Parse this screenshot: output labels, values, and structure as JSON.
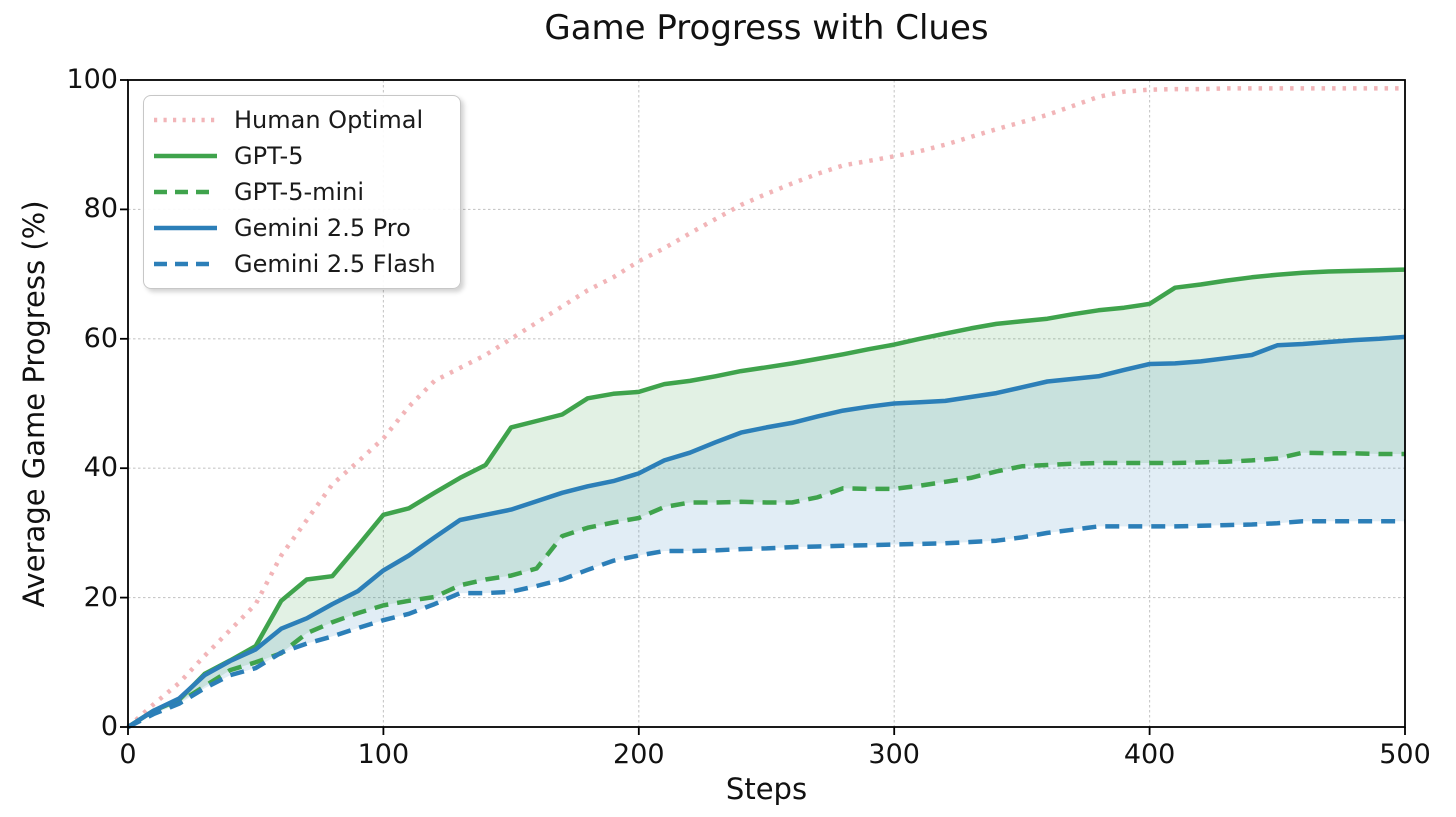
{
  "title": "Game Progress with Clues",
  "axes": {
    "x_label": "Steps",
    "y_label": "Average Game Progress (%)",
    "x_ticks": [
      0,
      100,
      200,
      300,
      400,
      500
    ],
    "y_ticks": [
      0,
      20,
      40,
      60,
      80,
      100
    ]
  },
  "colors": {
    "pink": "#f2b5b8",
    "green": "#3fa34c",
    "blue": "#2c7fb8",
    "grid": "#c8c8c8",
    "axis": "#000000",
    "green_fill": "rgba(63,163,76,0.15)",
    "blue_fill": "rgba(44,127,184,0.14)"
  },
  "chart_data": {
    "type": "line",
    "title": "Game Progress with Clues",
    "xlabel": "Steps",
    "ylabel": "Average Game Progress (%)",
    "xlim": [
      0,
      500
    ],
    "ylim": [
      0,
      100
    ],
    "grid": true,
    "legend_position": "upper left",
    "x": [
      0,
      10,
      20,
      30,
      40,
      50,
      60,
      70,
      80,
      90,
      100,
      110,
      120,
      130,
      140,
      150,
      160,
      170,
      180,
      190,
      200,
      210,
      220,
      230,
      240,
      250,
      260,
      270,
      280,
      290,
      300,
      310,
      320,
      330,
      340,
      350,
      360,
      370,
      380,
      390,
      400,
      410,
      420,
      430,
      440,
      450,
      460,
      470,
      480,
      490,
      500
    ],
    "series": [
      {
        "name": "Human Optimal",
        "style": "dotted",
        "color": "#f2b5b8",
        "values": [
          0,
          3.5,
          6.8,
          11,
          15,
          19,
          26.5,
          32,
          37.5,
          41,
          44.6,
          49.5,
          53.5,
          55.5,
          57.5,
          60,
          62.5,
          65,
          67.5,
          69.5,
          72,
          74,
          76.3,
          78.5,
          80.7,
          82.4,
          84,
          85.5,
          86.8,
          87.5,
          88.2,
          89,
          90,
          91.2,
          92.4,
          93.5,
          94.6,
          96,
          97.4,
          98.2,
          98.5,
          98.6,
          98.6,
          98.7,
          98.7,
          98.7,
          98.7,
          98.7,
          98.7,
          98.7,
          98.7
        ]
      },
      {
        "name": "GPT-5",
        "style": "solid",
        "color": "#3fa34c",
        "values": [
          0,
          2.5,
          4.2,
          8.2,
          10.3,
          12.5,
          19.5,
          22.8,
          23.3,
          28,
          32.8,
          33.8,
          36.2,
          38.5,
          40.5,
          46.3,
          47.3,
          48.3,
          50.8,
          51.5,
          51.8,
          53,
          53.5,
          54.2,
          55,
          55.6,
          56.2,
          56.9,
          57.6,
          58.4,
          59.1,
          60,
          60.8,
          61.6,
          62.3,
          62.7,
          63.1,
          63.8,
          64.4,
          64.8,
          65.4,
          67.9,
          68.4,
          69,
          69.5,
          69.9,
          70.2,
          70.4,
          70.5,
          70.6,
          70.7
        ]
      },
      {
        "name": "GPT-5-mini",
        "style": "dashed",
        "color": "#3fa34c",
        "values": [
          0,
          2.2,
          3.8,
          6.3,
          8.8,
          10,
          11.4,
          14.5,
          16.2,
          17.6,
          18.8,
          19.5,
          20.1,
          21.9,
          22.8,
          23.4,
          24.5,
          29.5,
          30.8,
          31.6,
          32.3,
          34,
          34.7,
          34.7,
          34.8,
          34.7,
          34.7,
          35.5,
          36.9,
          36.8,
          36.8,
          37.3,
          37.9,
          38.5,
          39.5,
          40.3,
          40.5,
          40.7,
          40.8,
          40.8,
          40.8,
          40.8,
          40.9,
          41,
          41.2,
          41.5,
          42.4,
          42.3,
          42.3,
          42.2,
          42.2
        ]
      },
      {
        "name": "Gemini 2.5 Pro",
        "style": "solid",
        "color": "#2c7fb8",
        "values": [
          0,
          2.5,
          4.4,
          8,
          10.2,
          12,
          15.2,
          16.8,
          19,
          21,
          24.2,
          26.5,
          29.3,
          32,
          32.8,
          33.6,
          34.9,
          36.2,
          37.2,
          38,
          39.2,
          41.2,
          42.4,
          44,
          45.5,
          46.3,
          47,
          48,
          48.9,
          49.5,
          50,
          50.2,
          50.4,
          51,
          51.6,
          52.5,
          53.4,
          53.8,
          54.2,
          55.2,
          56.1,
          56.2,
          56.5,
          57,
          57.5,
          59,
          59.2,
          59.5,
          59.8,
          60,
          60.3
        ]
      },
      {
        "name": "Gemini 2.5 Flash",
        "style": "dashed",
        "color": "#2c7fb8",
        "values": [
          0,
          2,
          3.6,
          6,
          8,
          9.1,
          11.5,
          12.9,
          14,
          15.3,
          16.5,
          17.5,
          19,
          20.7,
          20.7,
          20.9,
          21.8,
          22.8,
          24.3,
          25.7,
          26.5,
          27.2,
          27.2,
          27.3,
          27.5,
          27.6,
          27.8,
          27.9,
          28,
          28.1,
          28.2,
          28.3,
          28.4,
          28.6,
          28.8,
          29.3,
          30,
          30.5,
          31,
          31,
          31,
          31,
          31.1,
          31.2,
          31.3,
          31.5,
          31.8,
          31.8,
          31.8,
          31.8,
          31.8
        ]
      }
    ],
    "fills": [
      {
        "between": [
          "GPT-5",
          "GPT-5-mini"
        ],
        "color": "rgba(63,163,76,0.15)"
      },
      {
        "between": [
          "Gemini 2.5 Pro",
          "Gemini 2.5 Flash"
        ],
        "color": "rgba(44,127,184,0.14)"
      }
    ]
  }
}
